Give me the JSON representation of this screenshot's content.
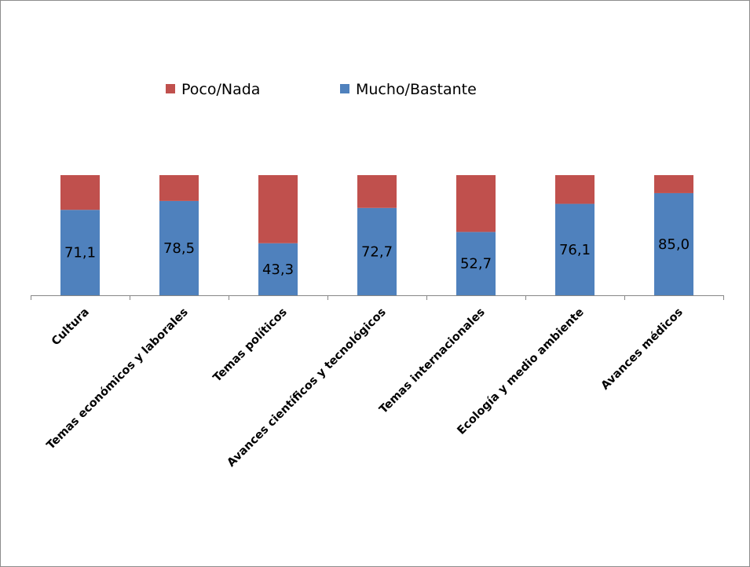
{
  "chart_data": {
    "type": "bar",
    "stacked": true,
    "percent_stacked": true,
    "categories": [
      "Cultura",
      "Temas económicos y laborales",
      "Temas políticos",
      "Avances científicos y tecnológicos",
      "Temas internacionales",
      "Ecología y medio ambiente",
      "Avances médicos"
    ],
    "series": [
      {
        "name": "Mucho/Bastante",
        "color": "#4f81bd",
        "values": [
          71.1,
          78.5,
          43.3,
          72.7,
          52.7,
          76.1,
          85.0
        ],
        "data_labels": [
          "71,1",
          "78,5",
          "43,3",
          "72,7",
          "52,7",
          "76,1",
          "85,0"
        ]
      },
      {
        "name": "Poco/Nada",
        "color": "#c0504d",
        "values": [
          28.9,
          21.5,
          56.7,
          27.3,
          47.3,
          23.9,
          15.0
        ]
      }
    ],
    "legend": {
      "position": "top",
      "order": [
        "Poco/Nada",
        "Mucho/Bastante"
      ]
    },
    "ylim": [
      0,
      100
    ],
    "y_axis_visible": false,
    "grid": false
  }
}
